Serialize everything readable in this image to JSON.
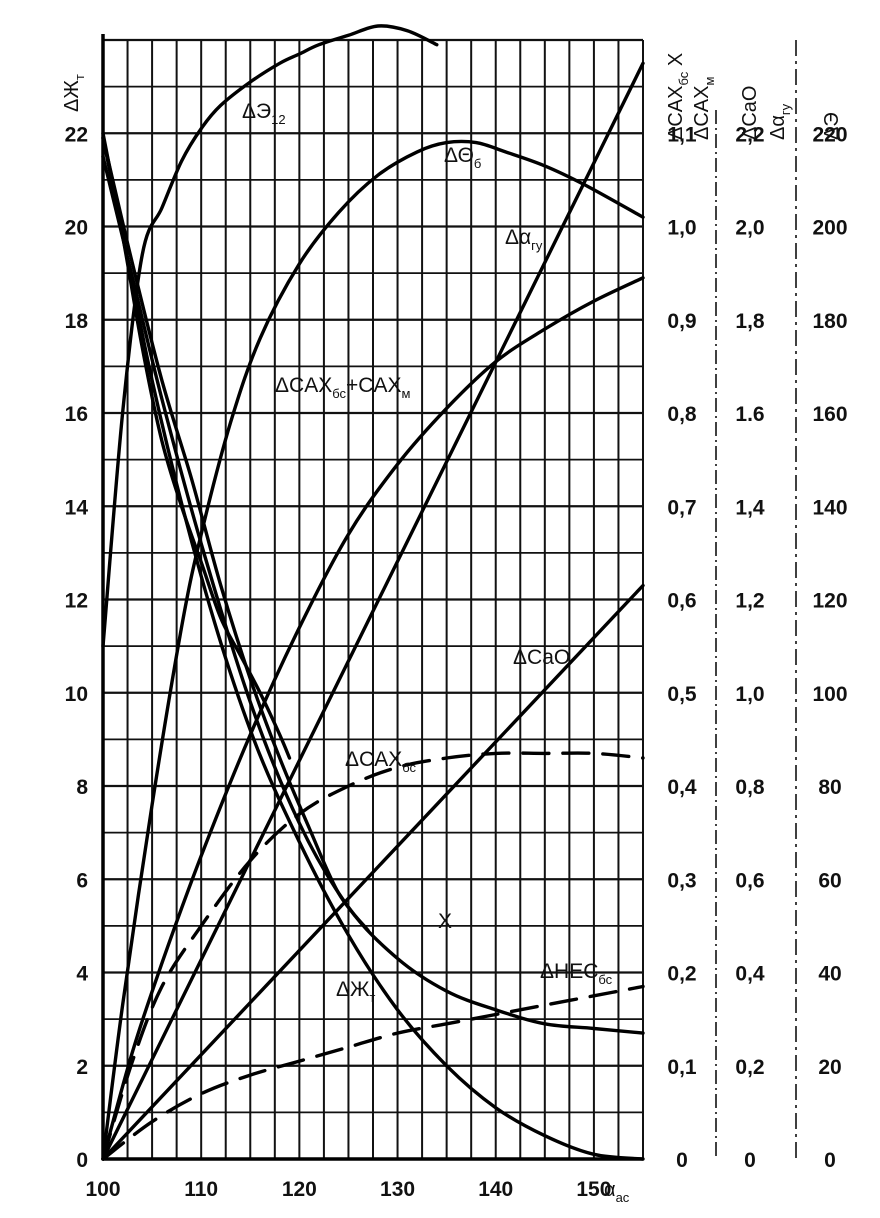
{
  "chart_data": {
    "type": "line",
    "grid": true,
    "x_axis": {
      "label": "α",
      "label_sub": "ac",
      "range": [
        100,
        155
      ],
      "ticks": [
        "100",
        "110",
        "120",
        "130",
        "140",
        "150"
      ]
    },
    "left_axis": {
      "label": "ΔЖ",
      "label_sub": "т",
      "range": [
        0,
        24
      ],
      "ticks": [
        "0",
        "2",
        "4",
        "6",
        "8",
        "10",
        "12",
        "14",
        "16",
        "18",
        "20",
        "22"
      ]
    },
    "right_axes": [
      {
        "label": "ΔCAX",
        "label_sub": "бс",
        "label_suffix": "X",
        "label2": "ΔCAX",
        "label2_sub": "м",
        "ticks": [
          "0",
          "0,1",
          "0,2",
          "0,3",
          "0,4",
          "0,5",
          "0,6",
          "0,7",
          "0,8",
          "0,9",
          "1,0",
          "1,1"
        ]
      },
      {
        "label": "ΔCaO",
        "label2": "Δα",
        "label2_sub": "гу",
        "ticks": [
          "0",
          "0,2",
          "0,4",
          "0,6",
          "0,8",
          "1,0",
          "1,2",
          "1,4",
          "1.6",
          "1,8",
          "2,0",
          "2,2"
        ]
      },
      {
        "label": "ΔЭ",
        "ticks": [
          "0",
          "20",
          "40",
          "60",
          "80",
          "100",
          "120",
          "140",
          "160",
          "180",
          "200",
          "220"
        ]
      }
    ],
    "series": [
      {
        "name": "ΔЭ",
        "name_sub": "12",
        "style": "solid",
        "x": [
          100,
          102,
          104,
          106,
          108,
          110,
          112,
          115,
          118,
          120,
          122,
          125,
          128,
          131,
          134
        ],
        "y": [
          11,
          16,
          19.4,
          20.4,
          21.4,
          22.1,
          22.6,
          23.1,
          23.5,
          23.7,
          23.9,
          24.1,
          24.3,
          24.2,
          23.9
        ]
      },
      {
        "name": "ΔΘ",
        "name_sub": "б",
        "style": "solid",
        "x": [
          100,
          102,
          105,
          108,
          110,
          113,
          116,
          120,
          124,
          128,
          132,
          135,
          138,
          141,
          145,
          149,
          155
        ],
        "y": [
          0,
          3.3,
          7.6,
          11.4,
          13.4,
          15.8,
          17.6,
          19.2,
          20.3,
          21.1,
          21.6,
          21.8,
          21.8,
          21.6,
          21.3,
          20.9,
          20.2
        ]
      },
      {
        "name": "Δα",
        "name_sub": "гу",
        "style": "solid",
        "x": [
          100,
          155
        ],
        "y": [
          0,
          23.5
        ]
      },
      {
        "name": "ΔCAX",
        "name_sub": "бс",
        "name_tail": "+CAX",
        "name_tail_sub": "м",
        "style": "solid",
        "x": [
          100,
          103,
          106,
          110,
          115,
          120,
          125,
          130,
          135,
          140,
          145,
          150,
          155
        ],
        "y": [
          0,
          2.3,
          4.2,
          6.5,
          9.1,
          11.4,
          13.4,
          14.9,
          16.1,
          17.1,
          17.8,
          18.4,
          18.9
        ]
      },
      {
        "name": "ΔCaO",
        "style": "solid",
        "x": [
          100,
          155
        ],
        "y": [
          0,
          12.3
        ]
      },
      {
        "name": "ΔCAX",
        "name_sub": "бс",
        "style": "dashed",
        "x": [
          100,
          103,
          106,
          110,
          115,
          120,
          125,
          130,
          135,
          140,
          145,
          150,
          155
        ],
        "y": [
          0,
          2.1,
          3.7,
          5.0,
          6.4,
          7.4,
          8.0,
          8.4,
          8.6,
          8.7,
          8.7,
          8.7,
          8.6
        ]
      },
      {
        "name": "X",
        "style": "solid",
        "x": [
          100,
          103,
          106,
          110,
          115,
          120,
          125,
          130,
          135,
          140,
          145,
          150,
          155
        ],
        "y": [
          21.5,
          18.9,
          16.3,
          13.2,
          9.8,
          7.2,
          5.4,
          4.3,
          3.6,
          3.2,
          2.9,
          2.8,
          2.7
        ]
      },
      {
        "name": "ΔЖ",
        "name_sub": "т",
        "style": "solid",
        "x": [
          100,
          105,
          110,
          115,
          120,
          125,
          130,
          135,
          140,
          145,
          150,
          155
        ],
        "y": [
          22,
          16.7,
          12.5,
          9.2,
          6.8,
          4.8,
          3.2,
          2.0,
          1.1,
          0.5,
          0.1,
          0
        ]
      },
      {
        "name": "ΔHEC",
        "name_sub": "бс",
        "style": "dashed",
        "x": [
          100,
          105,
          110,
          115,
          120,
          125,
          130,
          135,
          140,
          145,
          150,
          155
        ],
        "y": [
          0,
          0.8,
          1.4,
          1.8,
          2.1,
          2.4,
          2.7,
          2.9,
          3.1,
          3.3,
          3.5,
          3.7
        ]
      },
      {
        "name": "",
        "style": "solid",
        "x": [
          100,
          102,
          104,
          106,
          108,
          110,
          112,
          114,
          116,
          118,
          119
        ],
        "y": [
          21.9,
          19.8,
          17.4,
          15.4,
          14.0,
          12.8,
          11.6,
          10.8,
          10.0,
          9.1,
          8.6
        ]
      },
      {
        "name": "",
        "style": "solid",
        "x": [
          100,
          103,
          106,
          109,
          112,
          115,
          118,
          121,
          124,
          127
        ],
        "y": [
          21.9,
          19.2,
          16.7,
          14.6,
          12.3,
          10.3,
          8.6,
          7.1,
          5.7,
          4.9
        ]
      }
    ]
  }
}
